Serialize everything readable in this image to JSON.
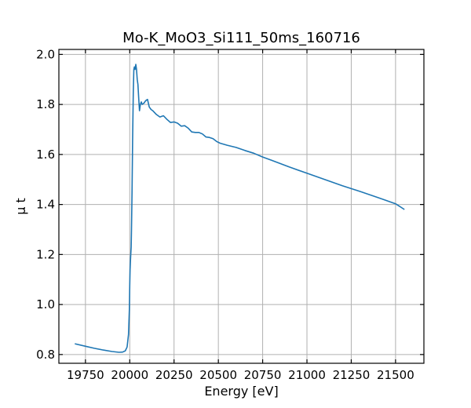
{
  "chart_data": {
    "type": "line",
    "title": "Mo-K_MoO3_Si111_50ms_160716",
    "xlabel": "Energy [eV]",
    "ylabel": "μ t",
    "xlim": [
      19600,
      21660
    ],
    "ylim": [
      0.765,
      2.02
    ],
    "xticks": [
      19750,
      20000,
      20250,
      20500,
      20750,
      21000,
      21250,
      21500
    ],
    "yticks": [
      0.8,
      1.0,
      1.2,
      1.4,
      1.6,
      1.8,
      2.0
    ],
    "xtick_labels": [
      "19750",
      "20000",
      "20250",
      "20500",
      "20750",
      "21000",
      "21250",
      "21500"
    ],
    "ytick_labels": [
      "0.8",
      "1.0",
      "1.2",
      "1.4",
      "1.6",
      "1.8",
      "2.0"
    ],
    "grid": true,
    "color": "#1f77b4",
    "series": [
      {
        "x": [
          19690,
          19750,
          19800,
          19850,
          19900,
          19940,
          19960,
          19975,
          19985,
          19993,
          19998,
          20000,
          20002,
          20005,
          20008,
          20010,
          20013,
          20016,
          20020,
          20023,
          20026,
          20030,
          20034,
          20038,
          20042,
          20046,
          20050,
          20055,
          20060,
          20065,
          20070,
          20080,
          20090,
          20100,
          20110,
          20120,
          20130,
          20150,
          20170,
          20190,
          20210,
          20230,
          20250,
          20270,
          20290,
          20310,
          20330,
          20350,
          20370,
          20390,
          20410,
          20430,
          20450,
          20470,
          20490,
          20510,
          20550,
          20600,
          20650,
          20700,
          20750,
          20800,
          20900,
          21000,
          21100,
          21200,
          21300,
          21400,
          21500,
          21550
        ],
        "y": [
          0.843,
          0.833,
          0.825,
          0.818,
          0.812,
          0.809,
          0.81,
          0.815,
          0.83,
          0.88,
          0.98,
          1.08,
          1.14,
          1.19,
          1.23,
          1.3,
          1.45,
          1.65,
          1.85,
          1.94,
          1.95,
          1.94,
          1.96,
          1.94,
          1.9,
          1.88,
          1.83,
          1.775,
          1.8,
          1.81,
          1.8,
          1.805,
          1.815,
          1.82,
          1.79,
          1.78,
          1.775,
          1.76,
          1.75,
          1.755,
          1.74,
          1.728,
          1.73,
          1.725,
          1.713,
          1.715,
          1.705,
          1.69,
          1.688,
          1.688,
          1.682,
          1.67,
          1.668,
          1.663,
          1.652,
          1.645,
          1.637,
          1.628,
          1.616,
          1.605,
          1.59,
          1.577,
          1.55,
          1.525,
          1.5,
          1.475,
          1.452,
          1.428,
          1.403,
          1.38
        ]
      }
    ]
  }
}
